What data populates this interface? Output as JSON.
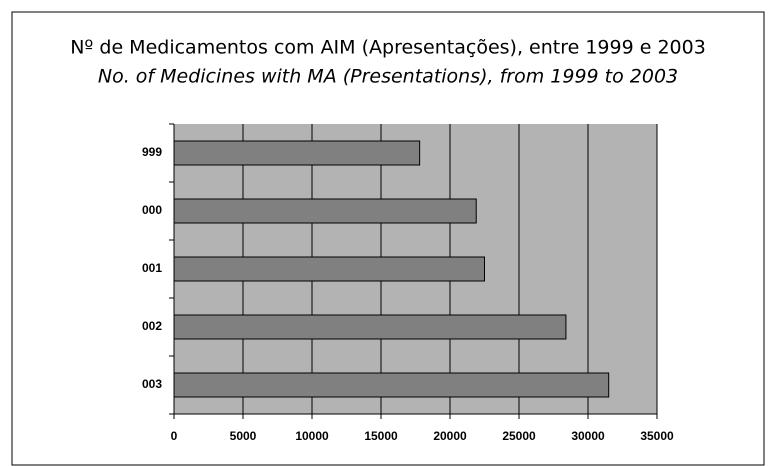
{
  "chart_data": {
    "type": "bar",
    "orientation": "horizontal",
    "title": "Nº de Medicamentos com AIM (Apresentações), entre 1999 e 2003",
    "subtitle": "No. of Medicines with MA (Presentations), from 1999 to 2003",
    "categories": [
      "999",
      "000",
      "001",
      "002",
      "003"
    ],
    "values": [
      17800,
      21900,
      22500,
      28400,
      31500
    ],
    "color": "#808080",
    "xlim": [
      0,
      35000
    ],
    "xticks": [
      0,
      5000,
      10000,
      15000,
      20000,
      25000,
      30000,
      35000
    ],
    "grid": true
  }
}
